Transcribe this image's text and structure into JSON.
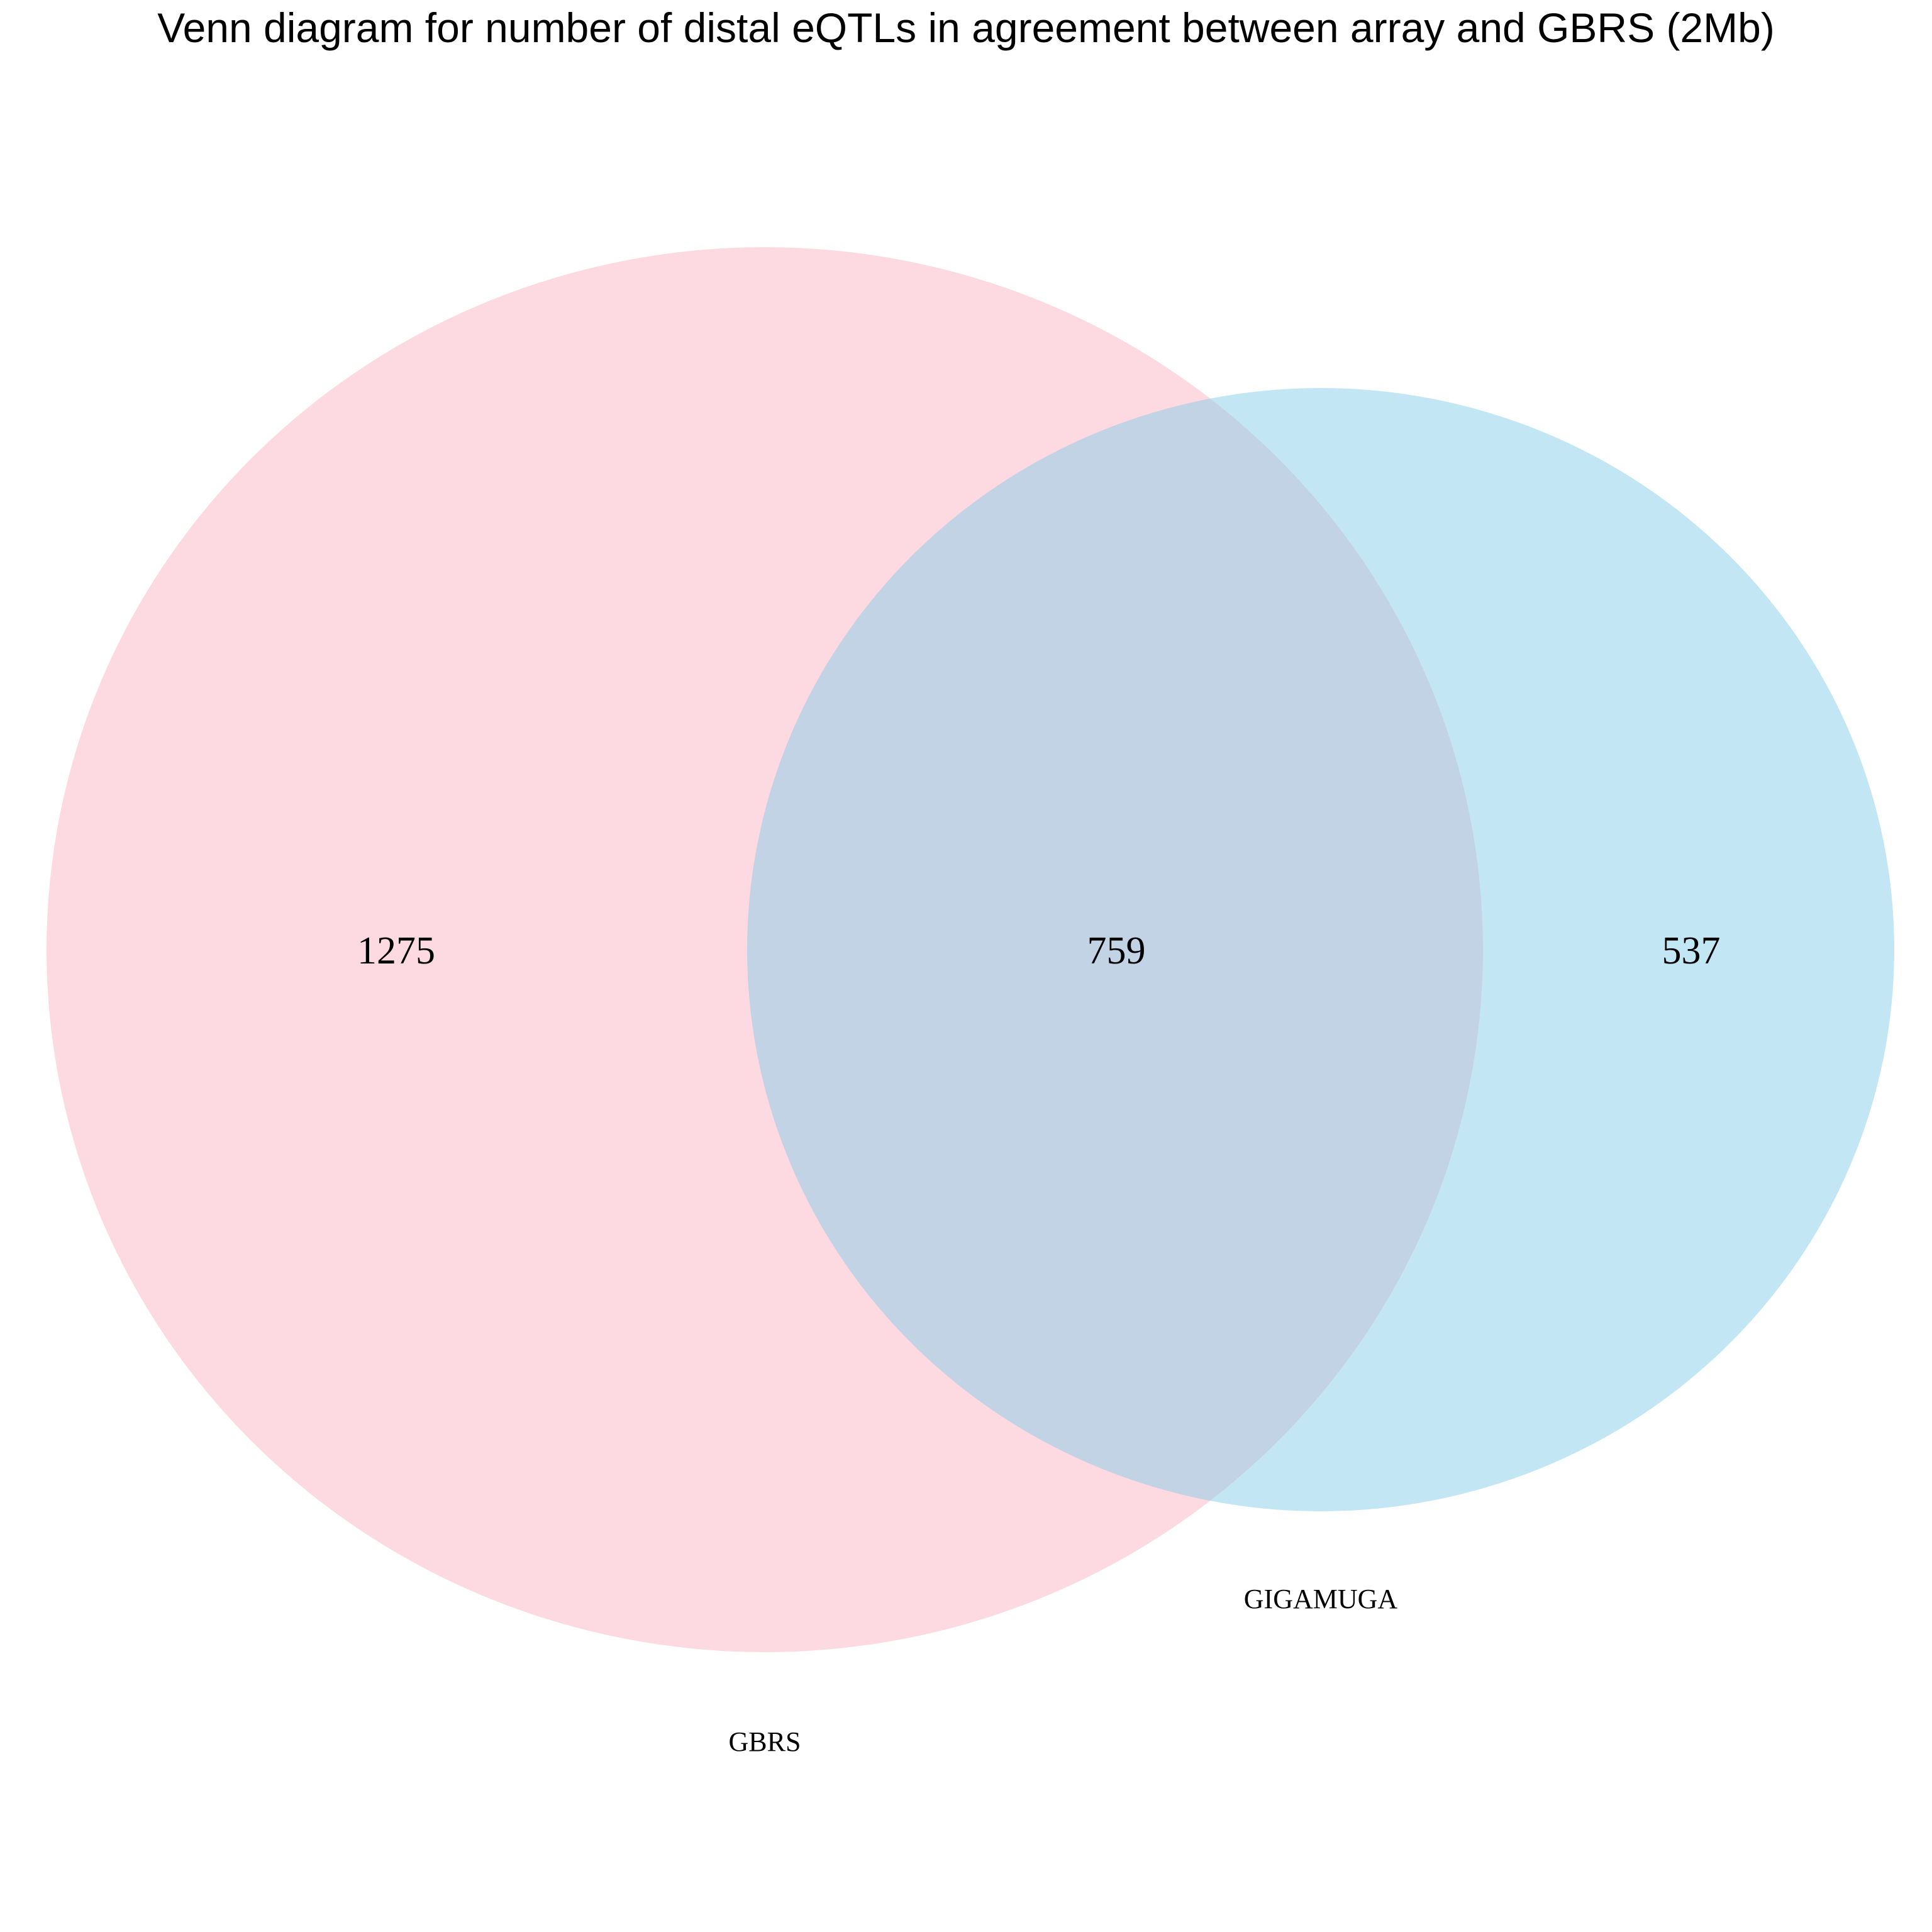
{
  "title": "Venn diagram for number of distal eQTLs in agreement between array and GBRS (2Mb)",
  "sets": [
    {
      "name": "GBRS",
      "color": "#FBB4C4"
    },
    {
      "name": "GIGAMUGA",
      "color": "#87CEEB"
    }
  ],
  "counts": {
    "gbrs_only": "1275",
    "overlap": "759",
    "gigamuga_only": "537"
  }
}
